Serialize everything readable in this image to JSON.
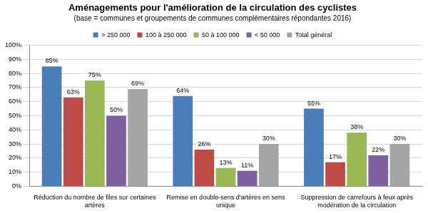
{
  "chart_data": {
    "type": "bar",
    "title": "Aménagements pour l'amélioration de la circulation des cyclistes",
    "subtitle": "(base = communes et groupements de communes complémentaires répondantes 2016)",
    "categories": [
      "Réduction du nombre de files sur certaines artères",
      "Remise en double-sens d'artères en sens unique",
      "Suppression de carrefours à feux après modération de la circulation"
    ],
    "series": [
      {
        "name": "> 250 000",
        "color": "#4a7ebb",
        "values": [
          85,
          64,
          55
        ],
        "value_labels": [
          "85%",
          "64%",
          "55%"
        ]
      },
      {
        "name": "100 à 250 000",
        "color": "#be4b48",
        "values": [
          63,
          26,
          17
        ],
        "value_labels": [
          "63%",
          "26%",
          "17%"
        ]
      },
      {
        "name": "50 à 100 000",
        "color": "#98b954",
        "values": [
          75,
          13,
          38
        ],
        "value_labels": [
          "75%",
          "13%",
          "38%"
        ]
      },
      {
        "name": "< 50 000",
        "color": "#7d60a0",
        "values": [
          50,
          11,
          22
        ],
        "value_labels": [
          "50%",
          "11%",
          "22%"
        ]
      },
      {
        "name": "Total général",
        "color": "#a5a5a5",
        "values": [
          69,
          30,
          30
        ],
        "value_labels": [
          "69%",
          "30%",
          "30%"
        ]
      }
    ],
    "ylim": [
      0,
      100
    ],
    "yticks": [
      {
        "value": 0,
        "label": "0%"
      },
      {
        "value": 10,
        "label": "10%"
      },
      {
        "value": 20,
        "label": "20%"
      },
      {
        "value": 30,
        "label": "30%"
      },
      {
        "value": 40,
        "label": "40%"
      },
      {
        "value": 50,
        "label": "50%"
      },
      {
        "value": 60,
        "label": "60%"
      },
      {
        "value": 70,
        "label": "70%"
      },
      {
        "value": 80,
        "label": "80%"
      },
      {
        "value": 90,
        "label": "90%"
      },
      {
        "value": 100,
        "label": "100%"
      }
    ],
    "grid": true,
    "legend": "top",
    "data_labels": true
  }
}
